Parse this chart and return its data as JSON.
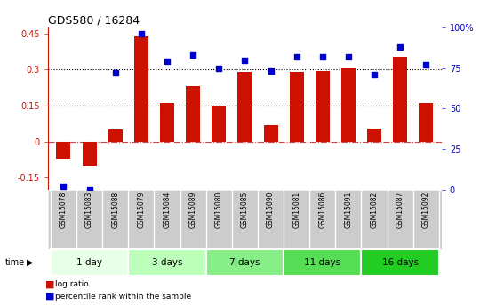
{
  "title": "GDS580 / 16284",
  "samples": [
    "GSM15078",
    "GSM15083",
    "GSM15088",
    "GSM15079",
    "GSM15084",
    "GSM15089",
    "GSM15080",
    "GSM15085",
    "GSM15090",
    "GSM15081",
    "GSM15086",
    "GSM15091",
    "GSM15082",
    "GSM15087",
    "GSM15092"
  ],
  "log_ratio": [
    -0.07,
    -0.1,
    0.05,
    0.44,
    0.16,
    0.23,
    0.145,
    0.29,
    0.07,
    0.29,
    0.295,
    0.305,
    0.055,
    0.355,
    0.16
  ],
  "pct_rank": [
    2,
    0,
    72,
    96,
    79,
    83,
    75,
    80,
    73,
    82,
    82,
    82,
    71,
    88,
    77
  ],
  "groups": [
    {
      "label": "1 day",
      "count": 3,
      "color": "#e8ffe8"
    },
    {
      "label": "3 days",
      "count": 3,
      "color": "#bbffbb"
    },
    {
      "label": "7 days",
      "count": 3,
      "color": "#88ee88"
    },
    {
      "label": "11 days",
      "count": 3,
      "color": "#55dd55"
    },
    {
      "label": "16 days",
      "count": 3,
      "color": "#22cc22"
    }
  ],
  "ylim_left": [
    -0.2,
    0.475
  ],
  "ylim_right": [
    0,
    100
  ],
  "yticks_left": [
    -0.15,
    0,
    0.15,
    0.3,
    0.45
  ],
  "yticks_left_labels": [
    "-0.15",
    "0",
    "0.15",
    "0.3",
    "0.45"
  ],
  "yticks_right": [
    0,
    25,
    50,
    75,
    100
  ],
  "yticks_right_labels": [
    "0",
    "25",
    "50",
    "75",
    "100%"
  ],
  "hline_y": [
    0.15,
    0.3
  ],
  "bar_color": "#cc1100",
  "dot_color": "#0000cc",
  "zero_line_color": "#cc4444",
  "sample_bg_color": "#cccccc",
  "legend_items": [
    "log ratio",
    "percentile rank within the sample"
  ]
}
